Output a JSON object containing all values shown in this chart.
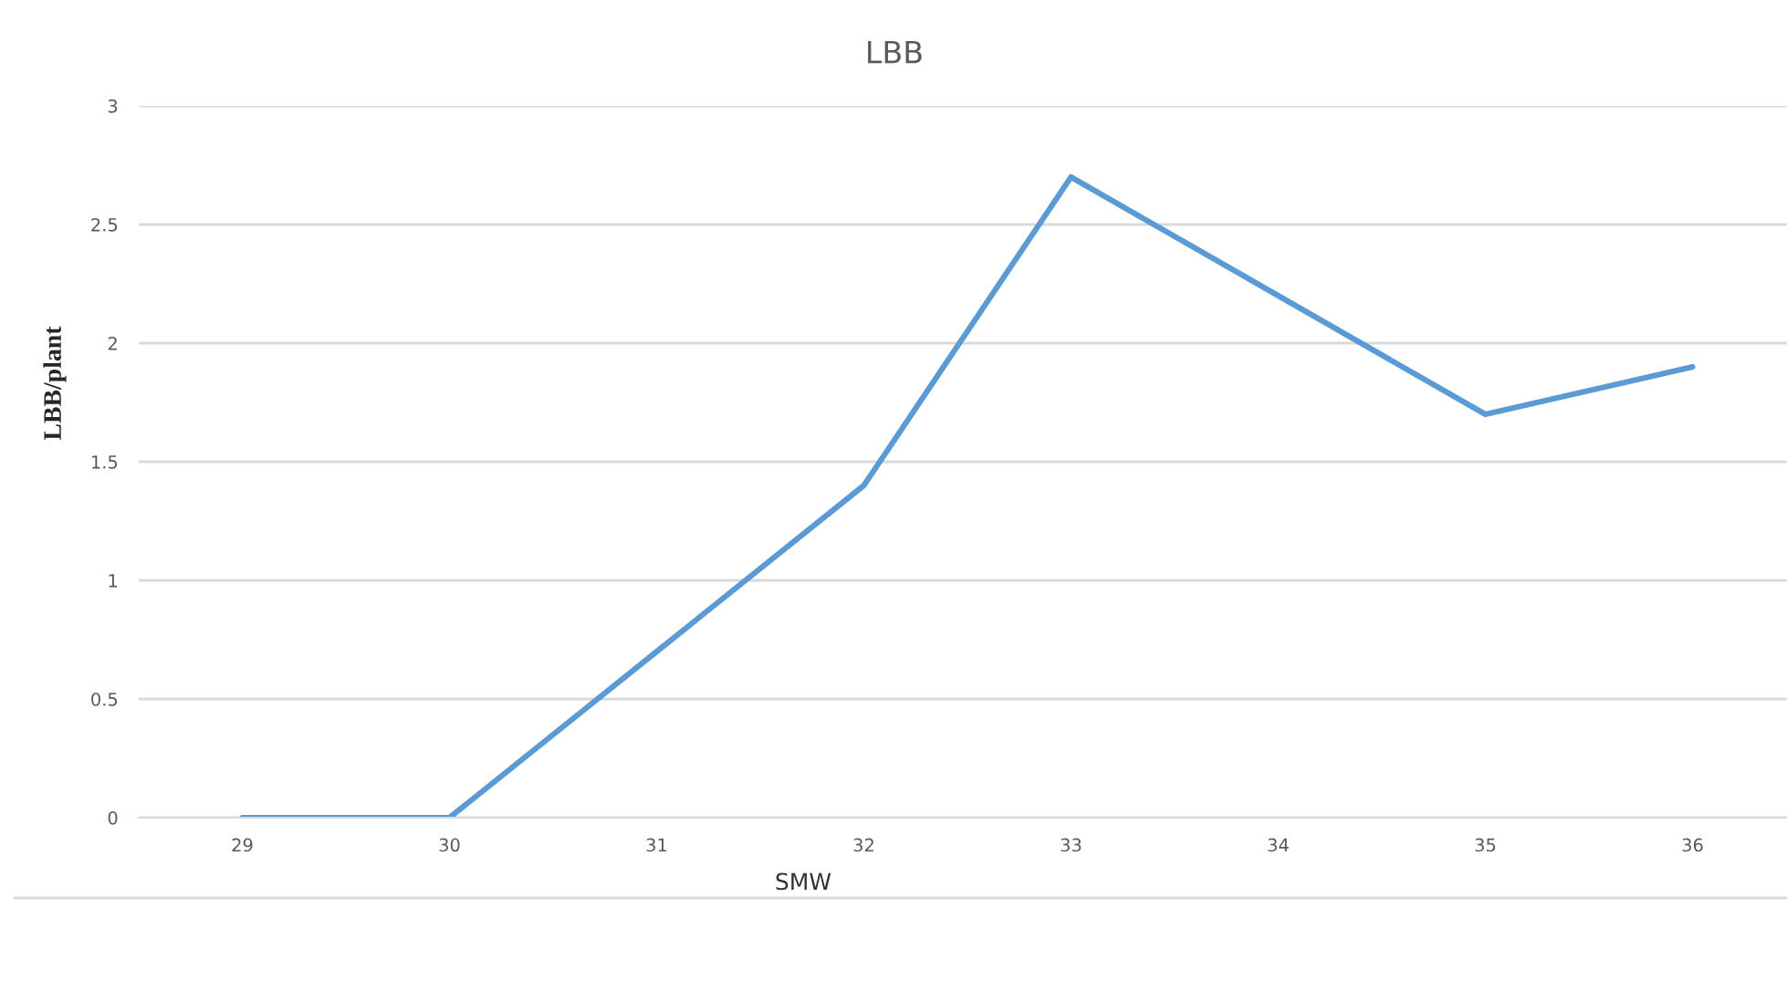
{
  "chart_data": {
    "type": "line",
    "title": "LBB",
    "xlabel": "SMW",
    "ylabel": "LBB/plant",
    "categories": [
      "29",
      "30",
      "31",
      "32",
      "33",
      "34",
      "35",
      "36"
    ],
    "series": [
      {
        "color": "#5b9bd5",
        "values": [
          0,
          0,
          0.7,
          1.4,
          2.7,
          2.2,
          1.7,
          1.9
        ]
      }
    ],
    "ylim": [
      0,
      3
    ],
    "yticks": [
      0,
      0.5,
      1,
      1.5,
      2,
      2.5,
      3
    ],
    "grid": "y",
    "legend": false
  }
}
